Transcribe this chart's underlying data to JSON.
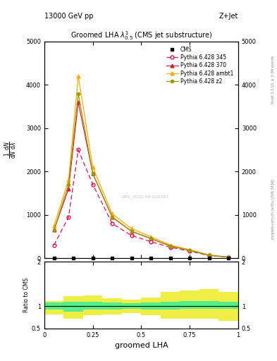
{
  "title": "Groomed LHA $\\lambda^{1}_{0.5}$ (CMS jet substructure)",
  "top_left_label": "13000 GeV pp",
  "top_right_label": "Z+Jet",
  "right_label_top": "Rivet 3.1.10, ≥ 3.3M events",
  "right_label_bottom": "mcplots.cern.ch [arXiv:1306.3436]",
  "watermark": "CMS_2021-08-020187",
  "xlabel": "groomed LHA",
  "ylabel_main": "$\\frac{1}{\\mathrm{d}N}\\frac{\\mathrm{d}N}{\\mathrm{d}\\lambda}$",
  "ylabel_ratio": "Ratio to CMS",
  "cms_x": [
    0.05,
    0.15,
    0.25,
    0.35,
    0.45,
    0.55,
    0.65,
    0.75,
    0.85,
    0.95
  ],
  "cms_y": [
    0,
    0,
    0,
    0,
    0,
    0,
    0,
    0,
    0,
    0
  ],
  "py345_x": [
    0.05,
    0.125,
    0.175,
    0.25,
    0.35,
    0.45,
    0.55,
    0.65,
    0.75,
    0.85,
    0.95
  ],
  "py345_y": [
    300,
    950,
    2500,
    1700,
    800,
    520,
    380,
    250,
    160,
    60,
    20
  ],
  "py370_x": [
    0.05,
    0.125,
    0.175,
    0.25,
    0.35,
    0.45,
    0.55,
    0.65,
    0.75,
    0.85,
    0.95
  ],
  "py370_y": [
    650,
    1600,
    3600,
    1950,
    950,
    620,
    450,
    280,
    180,
    65,
    22
  ],
  "pyambt1_x": [
    0.05,
    0.125,
    0.175,
    0.25,
    0.35,
    0.45,
    0.55,
    0.65,
    0.75,
    0.85,
    0.95
  ],
  "pyambt1_y": [
    750,
    1800,
    4200,
    2100,
    1020,
    680,
    490,
    300,
    195,
    75,
    25
  ],
  "pyz2_x": [
    0.05,
    0.125,
    0.175,
    0.25,
    0.35,
    0.45,
    0.55,
    0.65,
    0.75,
    0.85,
    0.95
  ],
  "pyz2_y": [
    650,
    1700,
    3800,
    1950,
    940,
    620,
    450,
    280,
    180,
    65,
    22
  ],
  "xlim": [
    0,
    1.0
  ],
  "ylim_main": [
    0,
    5000
  ],
  "ylim_ratio": [
    0.5,
    2.0
  ],
  "cms_color": "#000000",
  "py345_color": "#dd1155",
  "py370_color": "#cc2244",
  "pyambt1_color": "#ffaa00",
  "pyz2_color": "#999900",
  "ratio_green_color": "#55ee88",
  "ratio_yellow_color": "#eeee44",
  "ratio_bins": [
    0.0,
    0.1,
    0.2,
    0.3,
    0.4,
    0.5,
    0.6,
    0.7,
    0.8,
    0.9,
    1.0
  ],
  "ratio_green_lo": [
    0.92,
    0.88,
    0.92,
    0.93,
    0.94,
    0.93,
    0.92,
    0.94,
    0.94,
    0.94
  ],
  "ratio_green_hi": [
    1.08,
    1.1,
    1.1,
    1.08,
    1.07,
    1.08,
    1.1,
    1.12,
    1.12,
    1.1
  ],
  "ratio_yellow_lo": [
    0.82,
    0.72,
    0.8,
    0.82,
    0.85,
    0.8,
    0.72,
    0.72,
    0.72,
    0.68
  ],
  "ratio_yellow_hi": [
    1.12,
    1.22,
    1.25,
    1.18,
    1.15,
    1.2,
    1.32,
    1.35,
    1.38,
    1.32
  ],
  "yticks_main": [
    0,
    1000,
    2000,
    3000,
    4000,
    5000
  ],
  "ytick_labels_main": [
    "0",
    "1000",
    "2000",
    "3000",
    "4000",
    "5000"
  ],
  "xticks": [
    0,
    0.25,
    0.5,
    0.75,
    1.0
  ],
  "xtick_labels": [
    "0",
    "0.25",
    "0.5",
    "0.75",
    "1"
  ]
}
